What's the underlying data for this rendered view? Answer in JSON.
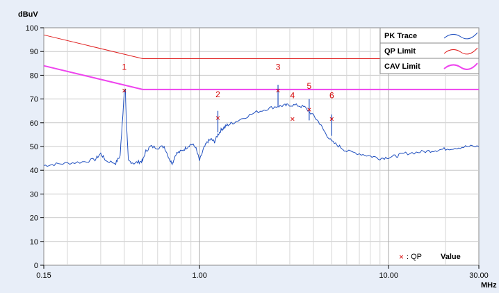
{
  "chart_data": {
    "type": "line",
    "ylabel": "dBuV",
    "xlabel": "MHz",
    "x_scale": "log",
    "xlim": [
      0.15,
      30
    ],
    "ylim": [
      0,
      100
    ],
    "grid": true,
    "y_ticks": [
      "0",
      "10",
      "20",
      "30",
      "40",
      "50",
      "60",
      "70",
      "80",
      "90",
      "100"
    ],
    "x_ticks": [
      {
        "value": 0.15,
        "label": "0.15"
      },
      {
        "value": 1,
        "label": "1.00"
      },
      {
        "value": 10,
        "label": "10.00"
      },
      {
        "value": 30,
        "label": "30.00"
      }
    ],
    "legend": {
      "placement": "top-right",
      "entries": [
        {
          "label": "PK Trace",
          "color": "#1f4fbf"
        },
        {
          "label": "QP Limit",
          "color": "#e02020"
        },
        {
          "label": "CAV Limit",
          "color": "#ee44ee"
        }
      ]
    },
    "series": [
      {
        "name": "PK Trace",
        "color": "#1f4fbf",
        "x": [
          0.15,
          0.17,
          0.2,
          0.24,
          0.28,
          0.3,
          0.32,
          0.36,
          0.38,
          0.39,
          0.4,
          0.405,
          0.41,
          0.42,
          0.45,
          0.48,
          0.5,
          0.52,
          0.55,
          0.6,
          0.65,
          0.7,
          0.72,
          0.75,
          0.8,
          0.85,
          0.9,
          0.95,
          1.0,
          1.05,
          1.1,
          1.15,
          1.2,
          1.25,
          1.3,
          1.35,
          1.4,
          1.5,
          1.7,
          2.0,
          2.3,
          2.6,
          2.8,
          3.0,
          3.3,
          3.6,
          4.0,
          4.3,
          4.6,
          5.0,
          5.5,
          6.0,
          7.0,
          8.0,
          9.0,
          10.0,
          11.0,
          12.0,
          14.0,
          16.0,
          18.0,
          20.0,
          23.0,
          26.0,
          30.0
        ],
        "y": [
          42,
          42.5,
          43,
          43.5,
          44.5,
          47,
          44,
          43,
          46,
          60,
          73,
          74,
          60,
          44,
          43,
          43.5,
          44,
          48,
          50,
          49.5,
          50,
          44,
          43,
          47,
          48,
          49.5,
          51,
          50,
          44,
          49,
          52,
          53,
          52,
          55,
          57,
          58,
          59,
          60,
          62,
          64.5,
          66,
          67,
          67.2,
          67.5,
          67.3,
          66.5,
          63,
          60,
          56,
          52,
          50,
          48,
          47,
          46,
          45,
          45.5,
          46,
          47,
          47.5,
          48,
          48.5,
          49,
          49.5,
          50,
          50
        ]
      },
      {
        "name": "QP Limit",
        "color": "#e02020",
        "x": [
          0.15,
          0.5,
          5,
          30
        ],
        "y": [
          97,
          87,
          87,
          87
        ]
      },
      {
        "name": "CAV Limit",
        "color": "#ee44ee",
        "x": [
          0.15,
          0.5,
          5,
          30
        ],
        "y": [
          84,
          74,
          74,
          74
        ]
      }
    ],
    "spikes": [
      {
        "x": 1.25,
        "y": 65
      },
      {
        "x": 2.6,
        "y": 76
      },
      {
        "x": 3.8,
        "y": 70
      },
      {
        "x": 5.0,
        "y": 63.5
      }
    ],
    "qp_markers": [
      {
        "label": "1",
        "x": 0.4,
        "y": 73.5
      },
      {
        "label": "2",
        "x": 1.25,
        "y": 62
      },
      {
        "label": "3",
        "x": 2.6,
        "y": 73.5
      },
      {
        "label": "4",
        "x": 3.1,
        "y": 61.5
      },
      {
        "label": "5",
        "x": 3.8,
        "y": 65.5
      },
      {
        "label": "6",
        "x": 5.0,
        "y": 61.5
      }
    ],
    "marker_note": {
      "symbol": "×",
      "text": ": QP",
      "value_label": "Value"
    }
  }
}
